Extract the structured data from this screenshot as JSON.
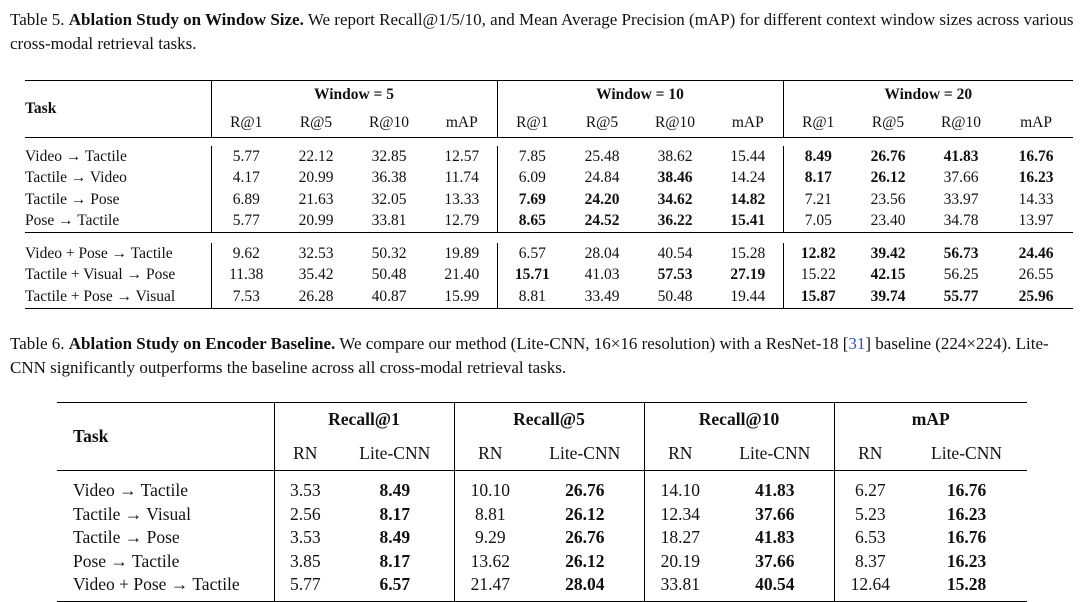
{
  "table5": {
    "caption_label": "Table 5.",
    "caption_title": "Ablation Study on Window Size.",
    "caption_text": "We report Recall@1/5/10, and Mean Average Precision (mAP) for different context window sizes across various cross-modal retrieval tasks.",
    "task_header": "Task",
    "groups": [
      "Window = 5",
      "Window = 10",
      "Window = 20"
    ],
    "metrics": [
      "R@1",
      "R@5",
      "R@10",
      "mAP"
    ],
    "sections": [
      [
        {
          "task": "Video → Tactile",
          "values": [
            "5.77",
            "22.12",
            "32.85",
            "12.57",
            "7.85",
            "25.48",
            "38.62",
            "15.44",
            "8.49",
            "26.76",
            "41.83",
            "16.76"
          ],
          "bold": [
            8,
            9,
            10,
            11
          ]
        },
        {
          "task": "Tactile → Video",
          "values": [
            "4.17",
            "20.99",
            "36.38",
            "11.74",
            "6.09",
            "24.84",
            "38.46",
            "14.24",
            "8.17",
            "26.12",
            "37.66",
            "16.23"
          ],
          "bold": [
            6,
            8,
            9,
            11
          ]
        },
        {
          "task": "Tactile → Pose",
          "values": [
            "6.89",
            "21.63",
            "32.05",
            "13.33",
            "7.69",
            "24.20",
            "34.62",
            "14.82",
            "7.21",
            "23.56",
            "33.97",
            "14.33"
          ],
          "bold": [
            4,
            5,
            6,
            7
          ]
        },
        {
          "task": "Pose → Tactile",
          "values": [
            "5.77",
            "20.99",
            "33.81",
            "12.79",
            "8.65",
            "24.52",
            "36.22",
            "15.41",
            "7.05",
            "23.40",
            "34.78",
            "13.97"
          ],
          "bold": [
            4,
            5,
            6,
            7
          ]
        }
      ],
      [
        {
          "task": "Video + Pose → Tactile",
          "values": [
            "9.62",
            "32.53",
            "50.32",
            "19.89",
            "6.57",
            "28.04",
            "40.54",
            "15.28",
            "12.82",
            "39.42",
            "56.73",
            "24.46"
          ],
          "bold": [
            8,
            9,
            10,
            11
          ]
        },
        {
          "task": "Tactile + Visual → Pose",
          "values": [
            "11.38",
            "35.42",
            "50.48",
            "21.40",
            "15.71",
            "41.03",
            "57.53",
            "27.19",
            "15.22",
            "42.15",
            "56.25",
            "26.55"
          ],
          "bold": [
            4,
            6,
            7,
            9
          ]
        },
        {
          "task": "Tactile + Pose → Visual",
          "values": [
            "7.53",
            "26.28",
            "40.87",
            "15.99",
            "8.81",
            "33.49",
            "50.48",
            "19.44",
            "15.87",
            "39.74",
            "55.77",
            "25.96"
          ],
          "bold": [
            8,
            9,
            10,
            11
          ]
        }
      ]
    ]
  },
  "table6": {
    "caption_label": "Table 6.",
    "caption_title": "Ablation Study on Encoder Baseline.",
    "caption_text_1": "We compare our method (Lite-CNN, 16×16 resolution) with a ResNet-18 [",
    "caption_cite": "31",
    "caption_text_2": "] baseline (224×224). Lite-CNN significantly outperforms the baseline across all cross-modal retrieval tasks.",
    "task_header": "Task",
    "groups": [
      "Recall@1",
      "Recall@5",
      "Recall@10",
      "mAP"
    ],
    "sub_headers": [
      "RN",
      "Lite-CNN"
    ],
    "rows": [
      {
        "task": "Video → Tactile",
        "values": [
          "3.53",
          "8.49",
          "10.10",
          "26.76",
          "14.10",
          "41.83",
          "6.27",
          "16.76"
        ]
      },
      {
        "task": "Tactile → Visual",
        "values": [
          "2.56",
          "8.17",
          "8.81",
          "26.12",
          "12.34",
          "37.66",
          "5.23",
          "16.23"
        ]
      },
      {
        "task": "Tactile → Pose",
        "values": [
          "3.53",
          "8.49",
          "9.29",
          "26.76",
          "18.27",
          "41.83",
          "6.53",
          "16.76"
        ]
      },
      {
        "task": "Pose → Tactile",
        "values": [
          "3.85",
          "8.17",
          "13.62",
          "26.12",
          "20.19",
          "37.66",
          "8.37",
          "16.23"
        ]
      },
      {
        "task": "Video + Pose → Tactile",
        "values": [
          "5.77",
          "6.57",
          "21.47",
          "28.04",
          "33.81",
          "40.54",
          "12.64",
          "15.28"
        ]
      }
    ]
  }
}
